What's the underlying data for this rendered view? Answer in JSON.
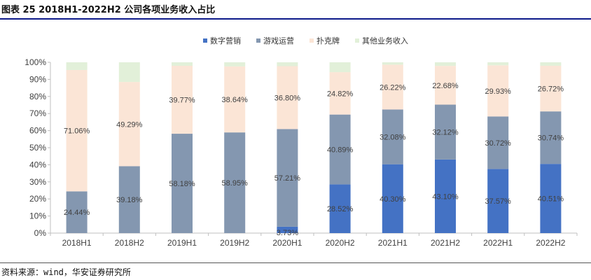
{
  "title": "图表 25 2018H1-2022H2 公司各项业务收入占比",
  "source": "资料来源：wind，华安证券研究所",
  "colors": {
    "digital_marketing": "#4472c4",
    "game_operation": "#8497b0",
    "poker": "#fbe5d6",
    "other": "#e2f0d9",
    "title_rule": "#0d1a8a"
  },
  "chart_data": {
    "type": "bar",
    "stacked": true,
    "categories": [
      "2018H1",
      "2018H2",
      "2019H1",
      "2019H2",
      "2020H1",
      "2020H2",
      "2021H1",
      "2021H2",
      "2022H1",
      "2022H2"
    ],
    "ylim": [
      0,
      100
    ],
    "yticks": [
      "0%",
      "10%",
      "20%",
      "30%",
      "40%",
      "50%",
      "60%",
      "70%",
      "80%",
      "90%",
      "100%"
    ],
    "legend_position": "top",
    "grid": false,
    "series": [
      {
        "name": "数字营销",
        "color_key": "digital_marketing",
        "values": [
          0,
          0,
          0,
          0,
          3.73,
          28.52,
          40.3,
          43.1,
          37.57,
          40.51
        ],
        "labels": [
          "",
          "",
          "",
          "",
          "3.73%",
          "28.52%",
          "40.30%",
          "43.10%",
          "37.57%",
          "40.51%"
        ]
      },
      {
        "name": "游戏运营",
        "color_key": "game_operation",
        "values": [
          24.44,
          39.18,
          58.18,
          58.95,
          57.21,
          40.89,
          32.08,
          32.12,
          30.72,
          30.74
        ],
        "labels": [
          "24.44%",
          "39.18%",
          "58.18%",
          "58.95%",
          "57.21%",
          "40.89%",
          "32.08%",
          "32.12%",
          "30.72%",
          "30.74%"
        ]
      },
      {
        "name": "扑克牌",
        "color_key": "poker",
        "values": [
          71.06,
          49.29,
          39.77,
          38.64,
          36.8,
          24.82,
          26.22,
          22.68,
          29.93,
          26.72
        ],
        "labels": [
          "71.06%",
          "49.29%",
          "39.77%",
          "38.64%",
          "36.80%",
          "24.82%",
          "26.22%",
          "22.68%",
          "29.93%",
          "26.72%"
        ]
      },
      {
        "name": "其他业务收入",
        "color_key": "other",
        "values": [
          4.5,
          11.53,
          2.05,
          2.41,
          2.26,
          5.77,
          1.4,
          2.1,
          1.78,
          2.03
        ],
        "labels": [
          "",
          "",
          "",
          "",
          "",
          "",
          "",
          "",
          "",
          ""
        ]
      }
    ]
  }
}
